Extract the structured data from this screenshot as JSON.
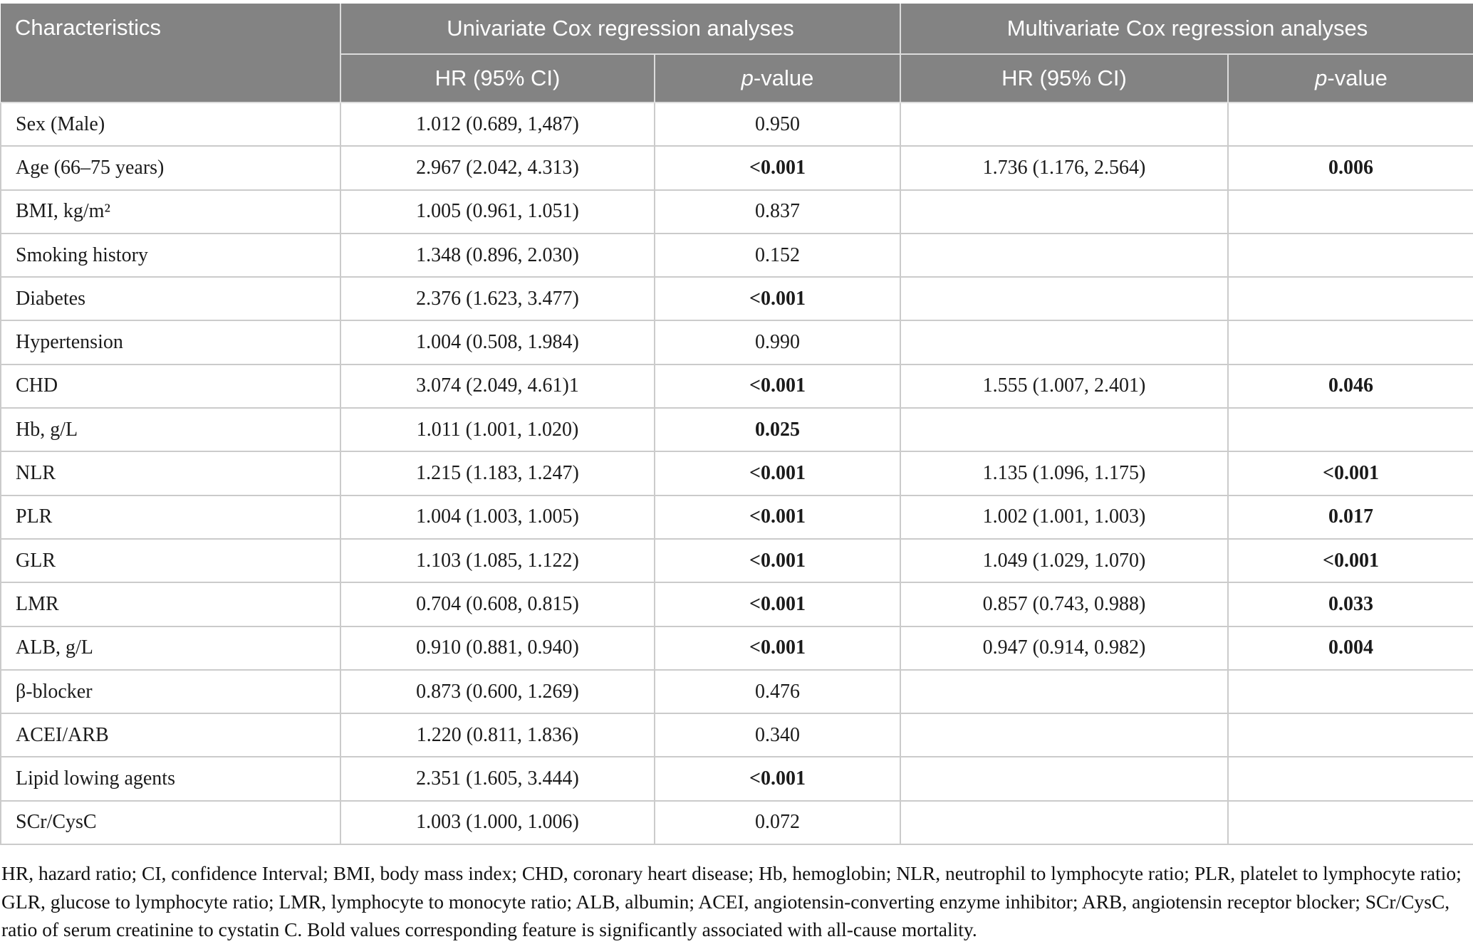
{
  "colors": {
    "header_bg": "#838383",
    "header_text": "#ffffff",
    "header_divider": "#dcdcdc",
    "body_border": "#cbcbcb"
  },
  "table": {
    "headers": {
      "characteristics": "Characteristics",
      "univariate_group": "Univariate Cox regression analyses",
      "multivariate_group": "Multivariate Cox regression analyses",
      "uni_hr_ci": "HR (95% CI)",
      "multi_hr_ci": "HR (95% CI)",
      "p_italic": "p",
      "p_rest": "-value"
    },
    "rows": [
      {
        "label": "Sex (Male)",
        "uni_hr": "1.012 (0.689, 1,487)",
        "uni_p": "0.950",
        "uni_p_bold": false,
        "multi_hr": "",
        "multi_p": "",
        "multi_p_bold": false
      },
      {
        "label": "Age (66–75 years)",
        "uni_hr": "2.967 (2.042, 4.313)",
        "uni_p": "<0.001",
        "uni_p_bold": true,
        "multi_hr": "1.736 (1.176, 2.564)",
        "multi_p": "0.006",
        "multi_p_bold": true
      },
      {
        "label": "BMI, kg/m²",
        "uni_hr": "1.005 (0.961, 1.051)",
        "uni_p": "0.837",
        "uni_p_bold": false,
        "multi_hr": "",
        "multi_p": "",
        "multi_p_bold": false
      },
      {
        "label": "Smoking history",
        "uni_hr": "1.348 (0.896, 2.030)",
        "uni_p": "0.152",
        "uni_p_bold": false,
        "multi_hr": "",
        "multi_p": "",
        "multi_p_bold": false
      },
      {
        "label": "Diabetes",
        "uni_hr": "2.376 (1.623, 3.477)",
        "uni_p": "<0.001",
        "uni_p_bold": true,
        "multi_hr": "",
        "multi_p": "",
        "multi_p_bold": false
      },
      {
        "label": "Hypertension",
        "uni_hr": "1.004 (0.508, 1.984)",
        "uni_p": "0.990",
        "uni_p_bold": false,
        "multi_hr": "",
        "multi_p": "",
        "multi_p_bold": false
      },
      {
        "label": "CHD",
        "uni_hr": "3.074 (2.049, 4.61)1",
        "uni_p": "<0.001",
        "uni_p_bold": true,
        "multi_hr": "1.555 (1.007, 2.401)",
        "multi_p": "0.046",
        "multi_p_bold": true
      },
      {
        "label": "Hb, g/L",
        "uni_hr": "1.011 (1.001, 1.020)",
        "uni_p": "0.025",
        "uni_p_bold": true,
        "multi_hr": "",
        "multi_p": "",
        "multi_p_bold": false
      },
      {
        "label": "NLR",
        "uni_hr": "1.215 (1.183, 1.247)",
        "uni_p": "<0.001",
        "uni_p_bold": true,
        "multi_hr": "1.135 (1.096, 1.175)",
        "multi_p": "<0.001",
        "multi_p_bold": true
      },
      {
        "label": "PLR",
        "uni_hr": "1.004 (1.003, 1.005)",
        "uni_p": "<0.001",
        "uni_p_bold": true,
        "multi_hr": "1.002 (1.001, 1.003)",
        "multi_p": "0.017",
        "multi_p_bold": true
      },
      {
        "label": "GLR",
        "uni_hr": "1.103 (1.085, 1.122)",
        "uni_p": "<0.001",
        "uni_p_bold": true,
        "multi_hr": "1.049 (1.029, 1.070)",
        "multi_p": "<0.001",
        "multi_p_bold": true
      },
      {
        "label": "LMR",
        "uni_hr": "0.704 (0.608, 0.815)",
        "uni_p": "<0.001",
        "uni_p_bold": true,
        "multi_hr": "0.857 (0.743, 0.988)",
        "multi_p": "0.033",
        "multi_p_bold": true
      },
      {
        "label": "ALB, g/L",
        "uni_hr": "0.910 (0.881, 0.940)",
        "uni_p": "<0.001",
        "uni_p_bold": true,
        "multi_hr": "0.947 (0.914, 0.982)",
        "multi_p": "0.004",
        "multi_p_bold": true
      },
      {
        "label": "β-blocker",
        "uni_hr": "0.873 (0.600, 1.269)",
        "uni_p": "0.476",
        "uni_p_bold": false,
        "multi_hr": "",
        "multi_p": "",
        "multi_p_bold": false
      },
      {
        "label": "ACEI/ARB",
        "uni_hr": "1.220 (0.811, 1.836)",
        "uni_p": "0.340",
        "uni_p_bold": false,
        "multi_hr": "",
        "multi_p": "",
        "multi_p_bold": false
      },
      {
        "label": "Lipid lowing agents",
        "uni_hr": "2.351 (1.605, 3.444)",
        "uni_p": "<0.001",
        "uni_p_bold": true,
        "multi_hr": "",
        "multi_p": "",
        "multi_p_bold": false
      },
      {
        "label": "SCr/CysC",
        "uni_hr": "1.003 (1.000, 1.006)",
        "uni_p": "0.072",
        "uni_p_bold": false,
        "multi_hr": "",
        "multi_p": "",
        "multi_p_bold": false
      }
    ],
    "footnote": "HR, hazard ratio; CI, confidence Interval; BMI, body mass index; CHD, coronary heart disease; Hb, hemoglobin; NLR, neutrophil to lymphocyte ratio; PLR, platelet to lymphocyte ratio; GLR, glucose to lymphocyte ratio; LMR, lymphocyte to monocyte ratio; ALB, albumin; ACEI, angiotensin-converting enzyme inhibitor; ARB, angiotensin receptor blocker; SCr/CysC, ratio of serum creatinine to cystatin C. Bold values corresponding feature is significantly associated with all-cause mortality."
  }
}
